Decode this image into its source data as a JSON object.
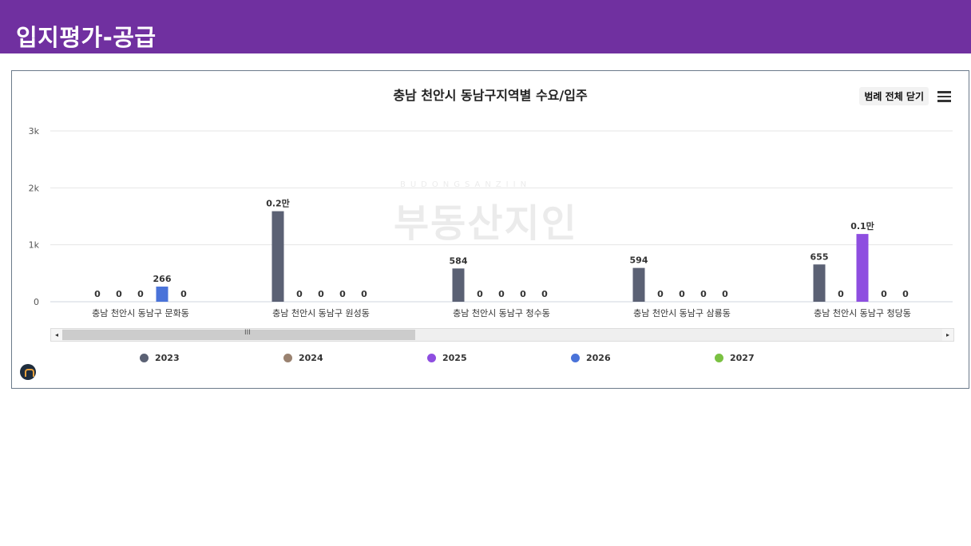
{
  "page": {
    "title": "입지평가-공급"
  },
  "toolbar": {
    "legend_toggle_label": "범례 전체 닫기"
  },
  "watermark": {
    "main": "부동산지인",
    "sub": "BUDONGSANZIIN"
  },
  "chart_data": {
    "type": "bar",
    "title": "충남 천안시 동남구지역별 수요/입주",
    "categories": [
      "충남 천안시 동남구 문화동",
      "충남 천안시 동남구 원성동",
      "충남 천안시 동남구 청수동",
      "충남 천안시 동남구 삼룡동",
      "충남 천안시 동남구 청당동"
    ],
    "series": [
      {
        "name": "2023",
        "color": "#5b6174",
        "values": [
          0,
          1590,
          584,
          594,
          655
        ]
      },
      {
        "name": "2024",
        "color": "#9a8270",
        "values": [
          0,
          0,
          0,
          0,
          0
        ]
      },
      {
        "name": "2025",
        "color": "#8e4ee0",
        "values": [
          0,
          0,
          0,
          0,
          1190
        ]
      },
      {
        "name": "2026",
        "color": "#4a73d9",
        "values": [
          266,
          0,
          0,
          0,
          0
        ]
      },
      {
        "name": "2027",
        "color": "#7ac142",
        "values": [
          0,
          0,
          0,
          0,
          0
        ]
      }
    ],
    "data_labels": [
      [
        "0",
        "0.2만",
        "584",
        "594",
        "655"
      ],
      [
        "0",
        "0",
        "0",
        "0",
        "0"
      ],
      [
        "0",
        "0",
        "0",
        "0",
        "0.1만"
      ],
      [
        "266",
        "0",
        "0",
        "0",
        "0"
      ],
      [
        "0",
        "0",
        "0",
        "0",
        "0"
      ]
    ],
    "y_ticks": [
      {
        "value": 0,
        "label": "0"
      },
      {
        "value": 1000,
        "label": "1k"
      },
      {
        "value": 2000,
        "label": "2k"
      },
      {
        "value": 3000,
        "label": "3k"
      }
    ],
    "ylim": [
      0,
      3000
    ],
    "grid": true,
    "legend_position": "bottom"
  }
}
